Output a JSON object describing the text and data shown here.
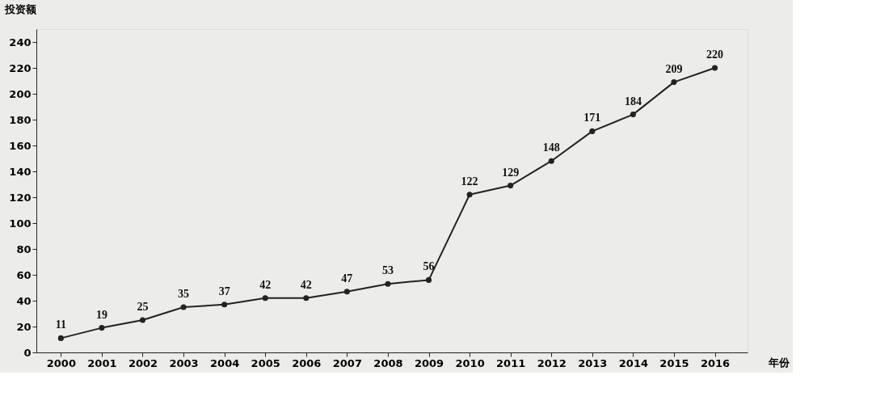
{
  "chart_data": {
    "type": "line",
    "xlabel": "年份",
    "ylabel": "投资额",
    "categories": [
      "2000",
      "2001",
      "2002",
      "2003",
      "2004",
      "2005",
      "2006",
      "2007",
      "2008",
      "2009",
      "2010",
      "2011",
      "2012",
      "2013",
      "2014",
      "2015",
      "2016"
    ],
    "series": [
      {
        "color": "#222222",
        "values": [
          11,
          19,
          25,
          35,
          37,
          42,
          42,
          47,
          53,
          56,
          122,
          129,
          148,
          171,
          184,
          209,
          220
        ]
      }
    ],
    "ylim": [
      0,
      250
    ],
    "yticks": [
      0,
      20,
      40,
      60,
      80,
      100,
      120,
      140,
      160,
      180,
      200,
      220,
      240
    ],
    "marker": "circle",
    "line_style": "solid",
    "data_labels": true,
    "grid": false,
    "legend": false
  }
}
